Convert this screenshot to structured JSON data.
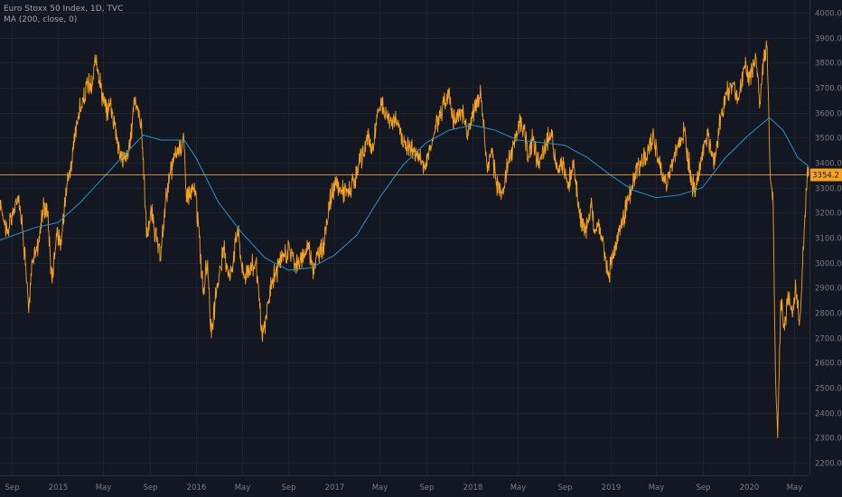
{
  "chart_data": {
    "type": "line",
    "title": "Euro Stoxx 50 Index, 1D, TVC",
    "indicator_label": "MA (200, close, 0)",
    "ylim": [
      2150,
      4050
    ],
    "yticks": [
      2200,
      2300,
      2400,
      2500,
      2600,
      2700,
      2800,
      2900,
      3000,
      3100,
      3200,
      3300,
      3400,
      3500,
      3600,
      3700,
      3800,
      3900,
      4000
    ],
    "ytick_labels": [
      "2200.0",
      "2300.0",
      "2400.0",
      "2500.0",
      "2600.0",
      "2700.0",
      "2800.0",
      "2900.0",
      "3000.0",
      "3100.0",
      "3200.0",
      "3300.0",
      "3400.0",
      "3500.0",
      "3600.0",
      "3700.0",
      "3800.0",
      "3900.0",
      "4000.0"
    ],
    "xlim": [
      "2014-08-01",
      "2020-06-10"
    ],
    "xticks": [
      {
        "date": "2014-09-01",
        "label": "Sep"
      },
      {
        "date": "2015-01-01",
        "label": "2015"
      },
      {
        "date": "2015-05-01",
        "label": "May"
      },
      {
        "date": "2015-09-01",
        "label": "Sep"
      },
      {
        "date": "2016-01-01",
        "label": "2016"
      },
      {
        "date": "2016-05-01",
        "label": "May"
      },
      {
        "date": "2016-09-01",
        "label": "Sep"
      },
      {
        "date": "2017-01-01",
        "label": "2017"
      },
      {
        "date": "2017-05-01",
        "label": "May"
      },
      {
        "date": "2017-09-01",
        "label": "Sep"
      },
      {
        "date": "2018-01-01",
        "label": "2018"
      },
      {
        "date": "2018-05-01",
        "label": "May"
      },
      {
        "date": "2018-09-01",
        "label": "Sep"
      },
      {
        "date": "2019-01-01",
        "label": "2019"
      },
      {
        "date": "2019-05-01",
        "label": "May"
      },
      {
        "date": "2019-09-01",
        "label": "Sep"
      },
      {
        "date": "2020-01-01",
        "label": "2020"
      },
      {
        "date": "2020-05-01",
        "label": "May"
      }
    ],
    "last_price": 3354.2,
    "last_price_label": "3354.2",
    "grid": true,
    "series": [
      {
        "kind": "price",
        "color": "#f7a21b",
        "points": [
          [
            "2014-08-01",
            3250
          ],
          [
            "2014-08-20",
            3120
          ],
          [
            "2014-09-05",
            3200
          ],
          [
            "2014-09-20",
            3270
          ],
          [
            "2014-10-05",
            3050
          ],
          [
            "2014-10-16",
            2800
          ],
          [
            "2014-10-25",
            3000
          ],
          [
            "2014-11-10",
            3080
          ],
          [
            "2014-11-25",
            3230
          ],
          [
            "2014-12-05",
            3200
          ],
          [
            "2014-12-16",
            2930
          ],
          [
            "2014-12-30",
            3140
          ],
          [
            "2015-01-08",
            3050
          ],
          [
            "2015-01-22",
            3300
          ],
          [
            "2015-02-05",
            3390
          ],
          [
            "2015-02-25",
            3600
          ],
          [
            "2015-03-10",
            3640
          ],
          [
            "2015-03-20",
            3720
          ],
          [
            "2015-04-01",
            3700
          ],
          [
            "2015-04-13",
            3830
          ],
          [
            "2015-04-25",
            3700
          ],
          [
            "2015-05-08",
            3600
          ],
          [
            "2015-05-20",
            3640
          ],
          [
            "2015-06-01",
            3550
          ],
          [
            "2015-06-15",
            3420
          ],
          [
            "2015-06-29",
            3420
          ],
          [
            "2015-07-10",
            3450
          ],
          [
            "2015-07-22",
            3660
          ],
          [
            "2015-07-31",
            3610
          ],
          [
            "2015-08-10",
            3560
          ],
          [
            "2015-08-24",
            3100
          ],
          [
            "2015-09-05",
            3200
          ],
          [
            "2015-09-29",
            3010
          ],
          [
            "2015-10-15",
            3280
          ],
          [
            "2015-11-05",
            3420
          ],
          [
            "2015-11-30",
            3500
          ],
          [
            "2015-12-05",
            3300
          ],
          [
            "2015-12-15",
            3270
          ],
          [
            "2015-12-30",
            3290
          ],
          [
            "2016-01-10",
            3100
          ],
          [
            "2016-01-20",
            2880
          ],
          [
            "2016-02-01",
            3010
          ],
          [
            "2016-02-11",
            2700
          ],
          [
            "2016-02-25",
            2900
          ],
          [
            "2016-03-15",
            3050
          ],
          [
            "2016-04-01",
            2940
          ],
          [
            "2016-04-20",
            3140
          ],
          [
            "2016-05-05",
            2950
          ],
          [
            "2016-05-20",
            2970
          ],
          [
            "2016-06-08",
            3000
          ],
          [
            "2016-06-24",
            2700
          ],
          [
            "2016-07-05",
            2780
          ],
          [
            "2016-07-20",
            2930
          ],
          [
            "2016-08-05",
            2980
          ],
          [
            "2016-08-20",
            3030
          ],
          [
            "2016-09-05",
            3050
          ],
          [
            "2016-09-20",
            3000
          ],
          [
            "2016-10-05",
            3000
          ],
          [
            "2016-10-25",
            3080
          ],
          [
            "2016-11-04",
            2980
          ],
          [
            "2016-11-20",
            3030
          ],
          [
            "2016-12-05",
            3080
          ],
          [
            "2016-12-20",
            3250
          ],
          [
            "2017-01-05",
            3310
          ],
          [
            "2017-01-20",
            3290
          ],
          [
            "2017-02-05",
            3280
          ],
          [
            "2017-02-25",
            3320
          ],
          [
            "2017-03-10",
            3400
          ],
          [
            "2017-03-31",
            3500
          ],
          [
            "2017-04-13",
            3450
          ],
          [
            "2017-04-24",
            3580
          ],
          [
            "2017-05-05",
            3640
          ],
          [
            "2017-05-20",
            3580
          ],
          [
            "2017-06-05",
            3580
          ],
          [
            "2017-06-20",
            3540
          ],
          [
            "2017-07-05",
            3480
          ],
          [
            "2017-07-20",
            3460
          ],
          [
            "2017-08-05",
            3440
          ],
          [
            "2017-08-29",
            3380
          ],
          [
            "2017-09-10",
            3450
          ],
          [
            "2017-09-25",
            3550
          ],
          [
            "2017-10-10",
            3600
          ],
          [
            "2017-10-30",
            3680
          ],
          [
            "2017-11-15",
            3560
          ],
          [
            "2017-12-05",
            3600
          ],
          [
            "2017-12-20",
            3530
          ],
          [
            "2018-01-05",
            3610
          ],
          [
            "2018-01-23",
            3680
          ],
          [
            "2018-02-09",
            3370
          ],
          [
            "2018-02-20",
            3450
          ],
          [
            "2018-03-05",
            3310
          ],
          [
            "2018-03-23",
            3280
          ],
          [
            "2018-04-05",
            3400
          ],
          [
            "2018-04-20",
            3480
          ],
          [
            "2018-05-10",
            3580
          ],
          [
            "2018-05-29",
            3420
          ],
          [
            "2018-06-10",
            3500
          ],
          [
            "2018-06-25",
            3380
          ],
          [
            "2018-07-10",
            3450
          ],
          [
            "2018-07-25",
            3520
          ],
          [
            "2018-08-15",
            3360
          ],
          [
            "2018-08-30",
            3400
          ],
          [
            "2018-09-10",
            3300
          ],
          [
            "2018-09-25",
            3410
          ],
          [
            "2018-10-10",
            3200
          ],
          [
            "2018-10-26",
            3120
          ],
          [
            "2018-11-10",
            3220
          ],
          [
            "2018-11-20",
            3130
          ],
          [
            "2018-12-05",
            3140
          ],
          [
            "2018-12-27",
            2940
          ],
          [
            "2019-01-05",
            3010
          ],
          [
            "2019-01-20",
            3120
          ],
          [
            "2019-02-05",
            3180
          ],
          [
            "2019-02-25",
            3290
          ],
          [
            "2019-03-15",
            3390
          ],
          [
            "2019-04-05",
            3420
          ],
          [
            "2019-04-25",
            3510
          ],
          [
            "2019-05-10",
            3390
          ],
          [
            "2019-05-30",
            3300
          ],
          [
            "2019-06-10",
            3380
          ],
          [
            "2019-06-28",
            3470
          ],
          [
            "2019-07-15",
            3530
          ],
          [
            "2019-08-05",
            3310
          ],
          [
            "2019-08-15",
            3290
          ],
          [
            "2019-08-30",
            3420
          ],
          [
            "2019-09-15",
            3510
          ],
          [
            "2019-10-03",
            3390
          ],
          [
            "2019-10-20",
            3590
          ],
          [
            "2019-11-05",
            3680
          ],
          [
            "2019-11-25",
            3720
          ],
          [
            "2019-12-05",
            3650
          ],
          [
            "2019-12-20",
            3780
          ],
          [
            "2020-01-05",
            3740
          ],
          [
            "2020-01-20",
            3830
          ],
          [
            "2020-01-31",
            3640
          ],
          [
            "2020-02-10",
            3800
          ],
          [
            "2020-02-19",
            3865
          ],
          [
            "2020-02-28",
            3330
          ],
          [
            "2020-03-06",
            3230
          ],
          [
            "2020-03-12",
            2560
          ],
          [
            "2020-03-18",
            2300
          ],
          [
            "2020-03-26",
            2850
          ],
          [
            "2020-04-05",
            2730
          ],
          [
            "2020-04-15",
            2870
          ],
          [
            "2020-04-25",
            2800
          ],
          [
            "2020-05-05",
            2900
          ],
          [
            "2020-05-15",
            2770
          ],
          [
            "2020-05-25",
            3050
          ],
          [
            "2020-06-05",
            3384
          ],
          [
            "2020-06-08",
            3354
          ]
        ]
      },
      {
        "kind": "ma",
        "name": "MA (200, close, 0)",
        "color": "#2196c8",
        "points": [
          [
            "2014-08-01",
            3090
          ],
          [
            "2014-11-01",
            3140
          ],
          [
            "2015-01-01",
            3160
          ],
          [
            "2015-03-01",
            3240
          ],
          [
            "2015-05-01",
            3340
          ],
          [
            "2015-07-01",
            3440
          ],
          [
            "2015-08-15",
            3510
          ],
          [
            "2015-10-01",
            3490
          ],
          [
            "2015-12-01",
            3490
          ],
          [
            "2016-01-01",
            3420
          ],
          [
            "2016-03-01",
            3240
          ],
          [
            "2016-05-01",
            3120
          ],
          [
            "2016-07-01",
            3020
          ],
          [
            "2016-09-01",
            2970
          ],
          [
            "2016-11-01",
            2980
          ],
          [
            "2017-01-01",
            3030
          ],
          [
            "2017-03-01",
            3110
          ],
          [
            "2017-05-01",
            3260
          ],
          [
            "2017-07-01",
            3390
          ],
          [
            "2017-09-01",
            3480
          ],
          [
            "2017-11-01",
            3530
          ],
          [
            "2018-01-01",
            3550
          ],
          [
            "2018-03-01",
            3530
          ],
          [
            "2018-05-01",
            3490
          ],
          [
            "2018-07-01",
            3480
          ],
          [
            "2018-09-01",
            3470
          ],
          [
            "2018-11-01",
            3420
          ],
          [
            "2019-01-01",
            3350
          ],
          [
            "2019-03-01",
            3290
          ],
          [
            "2019-05-01",
            3260
          ],
          [
            "2019-07-01",
            3270
          ],
          [
            "2019-09-01",
            3300
          ],
          [
            "2019-11-01",
            3420
          ],
          [
            "2020-01-01",
            3510
          ],
          [
            "2020-02-25",
            3580
          ],
          [
            "2020-04-01",
            3530
          ],
          [
            "2020-05-10",
            3420
          ],
          [
            "2020-06-08",
            3385
          ]
        ]
      }
    ]
  }
}
